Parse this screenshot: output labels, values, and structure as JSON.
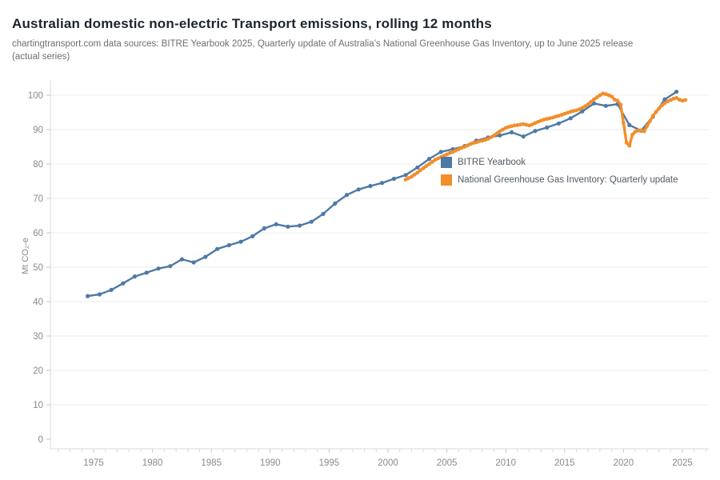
{
  "page": {
    "title": "Australian domestic non-electric Transport emissions, rolling 12 months",
    "subtitle_line1": "chartingtransport.com  data sources: BITRE Yearbook 2025, Quarterly update of Australia’s National Greenhouse Gas Inventory, up to June 2025 release",
    "subtitle_line2": "(actual series)"
  },
  "chart_data": {
    "type": "line",
    "title": "Australian domestic non-electric Transport emissions, rolling 12 months",
    "xlabel": "",
    "ylabel": "Mt CO₂-e",
    "ylim": [
      0,
      104
    ],
    "xlim": [
      1971.3,
      2027.2
    ],
    "grid": "horizontal",
    "legend_position": "inside-right",
    "x_ticks": [
      1975,
      1980,
      1985,
      1990,
      1995,
      2000,
      2005,
      2010,
      2015,
      2020,
      2025
    ],
    "y_ticks": [
      0,
      10,
      20,
      30,
      40,
      50,
      60,
      70,
      80,
      90,
      100
    ],
    "minor_x_tick_range": [
      1972,
      2027
    ],
    "series": [
      {
        "name": "BITRE Yearbook",
        "color": "#4e79a7",
        "cadence": "annual (financial year)",
        "points": [
          [
            1974.5,
            41.6
          ],
          [
            1975.5,
            42.1
          ],
          [
            1976.5,
            43.4
          ],
          [
            1977.5,
            45.3
          ],
          [
            1978.5,
            47.3
          ],
          [
            1979.5,
            48.4
          ],
          [
            1980.5,
            49.6
          ],
          [
            1981.5,
            50.3
          ],
          [
            1982.5,
            52.3
          ],
          [
            1983.5,
            51.4
          ],
          [
            1984.5,
            53.0
          ],
          [
            1985.5,
            55.3
          ],
          [
            1986.5,
            56.4
          ],
          [
            1987.5,
            57.4
          ],
          [
            1988.5,
            59.0
          ],
          [
            1989.5,
            61.3
          ],
          [
            1990.5,
            62.5
          ],
          [
            1991.5,
            61.8
          ],
          [
            1992.5,
            62.1
          ],
          [
            1993.5,
            63.2
          ],
          [
            1994.5,
            65.5
          ],
          [
            1995.5,
            68.5
          ],
          [
            1996.5,
            71.0
          ],
          [
            1997.5,
            72.6
          ],
          [
            1998.5,
            73.6
          ],
          [
            1999.5,
            74.5
          ],
          [
            2000.5,
            75.7
          ],
          [
            2001.5,
            76.8
          ],
          [
            2002.5,
            79.0
          ],
          [
            2003.5,
            81.5
          ],
          [
            2004.5,
            83.5
          ],
          [
            2005.5,
            84.3
          ],
          [
            2006.5,
            85.2
          ],
          [
            2007.5,
            86.8
          ],
          [
            2008.5,
            87.7
          ],
          [
            2009.5,
            88.3
          ],
          [
            2010.5,
            89.2
          ],
          [
            2011.5,
            88.0
          ],
          [
            2012.5,
            89.6
          ],
          [
            2013.5,
            90.6
          ],
          [
            2014.5,
            91.8
          ],
          [
            2015.5,
            93.3
          ],
          [
            2016.5,
            95.3
          ],
          [
            2017.5,
            97.6
          ],
          [
            2018.5,
            96.9
          ],
          [
            2019.5,
            97.4
          ],
          [
            2020.5,
            91.3
          ],
          [
            2021.5,
            89.7
          ],
          [
            2022.5,
            93.8
          ],
          [
            2023.5,
            98.8
          ],
          [
            2024.5,
            101.0
          ]
        ]
      },
      {
        "name": "National Greenhouse Gas Inventory: Quarterly update",
        "color": "#f28e2b",
        "cadence": "quarterly",
        "points": [
          [
            2001.5,
            75.5
          ],
          [
            2001.75,
            75.9
          ],
          [
            2002,
            76.3
          ],
          [
            2002.25,
            76.9
          ],
          [
            2002.5,
            77.5
          ],
          [
            2002.75,
            78.2
          ],
          [
            2003,
            78.8
          ],
          [
            2003.25,
            79.4
          ],
          [
            2003.5,
            80.0
          ],
          [
            2003.75,
            80.6
          ],
          [
            2004,
            81.2
          ],
          [
            2004.25,
            81.6
          ],
          [
            2004.5,
            82.0
          ],
          [
            2004.75,
            82.4
          ],
          [
            2005,
            82.8
          ],
          [
            2005.25,
            83.2
          ],
          [
            2005.5,
            83.5
          ],
          [
            2005.75,
            83.9
          ],
          [
            2006,
            84.3
          ],
          [
            2006.25,
            84.7
          ],
          [
            2006.5,
            85.0
          ],
          [
            2006.75,
            85.4
          ],
          [
            2007,
            85.8
          ],
          [
            2007.25,
            86.1
          ],
          [
            2007.5,
            86.3
          ],
          [
            2007.75,
            86.6
          ],
          [
            2008,
            86.8
          ],
          [
            2008.25,
            87.0
          ],
          [
            2008.5,
            87.3
          ],
          [
            2008.75,
            87.8
          ],
          [
            2009,
            88.3
          ],
          [
            2009.25,
            88.9
          ],
          [
            2009.5,
            89.5
          ],
          [
            2009.75,
            90.0
          ],
          [
            2010,
            90.5
          ],
          [
            2010.25,
            90.8
          ],
          [
            2010.5,
            91.0
          ],
          [
            2010.75,
            91.2
          ],
          [
            2011,
            91.3
          ],
          [
            2011.25,
            91.5
          ],
          [
            2011.5,
            91.6
          ],
          [
            2011.75,
            91.4
          ],
          [
            2012,
            91.2
          ],
          [
            2012.25,
            91.5
          ],
          [
            2012.5,
            91.9
          ],
          [
            2012.75,
            92.3
          ],
          [
            2013,
            92.6
          ],
          [
            2013.25,
            92.9
          ],
          [
            2013.5,
            93.1
          ],
          [
            2013.75,
            93.3
          ],
          [
            2014,
            93.5
          ],
          [
            2014.25,
            93.8
          ],
          [
            2014.5,
            94.0
          ],
          [
            2014.75,
            94.3
          ],
          [
            2015,
            94.6
          ],
          [
            2015.25,
            94.9
          ],
          [
            2015.5,
            95.2
          ],
          [
            2015.75,
            95.4
          ],
          [
            2016,
            95.6
          ],
          [
            2016.25,
            95.9
          ],
          [
            2016.5,
            96.3
          ],
          [
            2016.75,
            96.8
          ],
          [
            2017,
            97.4
          ],
          [
            2017.25,
            98.1
          ],
          [
            2017.5,
            98.8
          ],
          [
            2017.75,
            99.4
          ],
          [
            2018,
            100.0
          ],
          [
            2018.25,
            100.5
          ],
          [
            2018.5,
            100.3
          ],
          [
            2018.75,
            100.0
          ],
          [
            2019,
            99.6
          ],
          [
            2019.25,
            98.7
          ],
          [
            2019.5,
            98.4
          ],
          [
            2019.75,
            97.3
          ],
          [
            2020,
            92.0
          ],
          [
            2020.25,
            86.2
          ],
          [
            2020.5,
            85.3
          ],
          [
            2020.75,
            88.5
          ],
          [
            2021,
            89.4
          ],
          [
            2021.25,
            89.7
          ],
          [
            2021.5,
            89.8
          ],
          [
            2021.75,
            89.5
          ],
          [
            2022,
            91.0
          ],
          [
            2022.25,
            92.5
          ],
          [
            2022.5,
            94.0
          ],
          [
            2022.75,
            95.1
          ],
          [
            2023,
            96.1
          ],
          [
            2023.25,
            97.0
          ],
          [
            2023.5,
            97.7
          ],
          [
            2023.75,
            98.2
          ],
          [
            2024,
            98.6
          ],
          [
            2024.25,
            99.0
          ],
          [
            2024.5,
            99.2
          ],
          [
            2024.75,
            98.7
          ],
          [
            2025,
            98.4
          ],
          [
            2025.25,
            98.6
          ]
        ]
      }
    ],
    "colors": {
      "grid": "#ebebeb",
      "axis": "#d9d9d9",
      "tick": "#c9c9c9",
      "tick_label": "#8a8a8a"
    }
  }
}
